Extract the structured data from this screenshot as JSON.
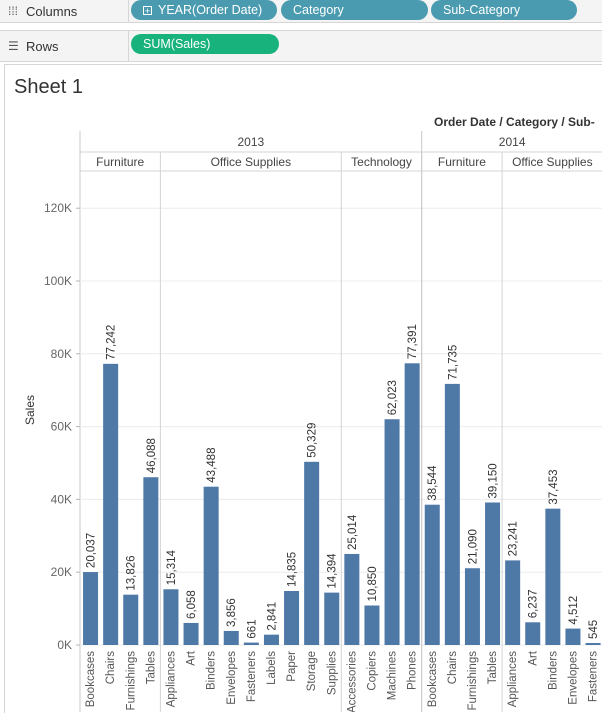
{
  "shelves": {
    "columns": {
      "label": "Columns",
      "pills": [
        "YEAR(Order Date)",
        "Category",
        "Sub-Category"
      ]
    },
    "rows": {
      "label": "Rows",
      "pills": [
        "SUM(Sales)"
      ]
    }
  },
  "sheet": {
    "title": "Sheet 1",
    "header_caption": "Order Date / Category / Sub-"
  },
  "colors": {
    "bar": "#4e79a7",
    "dimension_pill": "#4a9bb0",
    "measure_pill": "#18b27d"
  },
  "chart_data": {
    "type": "bar",
    "title": "Sheet 1",
    "ylabel": "Sales",
    "ylim": [
      0,
      125000
    ],
    "yticks": [
      "0K",
      "20K",
      "40K",
      "60K",
      "80K",
      "100K",
      "120K"
    ],
    "years": [
      {
        "year": "2013",
        "categories": [
          {
            "name": "Furniture",
            "items": [
              {
                "sub": "Bookcases",
                "value": 20037,
                "label": "20,037"
              },
              {
                "sub": "Chairs",
                "value": 77242,
                "label": "77,242"
              },
              {
                "sub": "Furnishings",
                "value": 13826,
                "label": "13,826"
              },
              {
                "sub": "Tables",
                "value": 46088,
                "label": "46,088"
              }
            ]
          },
          {
            "name": "Office Supplies",
            "items": [
              {
                "sub": "Appliances",
                "value": 15314,
                "label": "15,314"
              },
              {
                "sub": "Art",
                "value": 6058,
                "label": "6,058"
              },
              {
                "sub": "Binders",
                "value": 43488,
                "label": "43,488"
              },
              {
                "sub": "Envelopes",
                "value": 3856,
                "label": "3,856"
              },
              {
                "sub": "Fasteners",
                "value": 661,
                "label": "661"
              },
              {
                "sub": "Labels",
                "value": 2841,
                "label": "2,841"
              },
              {
                "sub": "Paper",
                "value": 14835,
                "label": "14,835"
              },
              {
                "sub": "Storage",
                "value": 50329,
                "label": "50,329"
              },
              {
                "sub": "Supplies",
                "value": 14394,
                "label": "14,394"
              }
            ]
          },
          {
            "name": "Technology",
            "items": [
              {
                "sub": "Accessories",
                "value": 25014,
                "label": "25,014"
              },
              {
                "sub": "Copiers",
                "value": 10850,
                "label": "10,850"
              },
              {
                "sub": "Machines",
                "value": 62023,
                "label": "62,023"
              },
              {
                "sub": "Phones",
                "value": 77391,
                "label": "77,391"
              }
            ]
          }
        ]
      },
      {
        "year": "2014",
        "categories": [
          {
            "name": "Furniture",
            "items": [
              {
                "sub": "Bookcases",
                "value": 38544,
                "label": "38,544"
              },
              {
                "sub": "Chairs",
                "value": 71735,
                "label": "71,735"
              },
              {
                "sub": "Furnishings",
                "value": 21090,
                "label": "21,090"
              },
              {
                "sub": "Tables",
                "value": 39150,
                "label": "39,150"
              }
            ]
          },
          {
            "name": "Office Supplies",
            "items": [
              {
                "sub": "Appliances",
                "value": 23241,
                "label": "23,241"
              },
              {
                "sub": "Art",
                "value": 6237,
                "label": "6,237"
              },
              {
                "sub": "Binders",
                "value": 37453,
                "label": "37,453"
              },
              {
                "sub": "Envelopes",
                "value": 4512,
                "label": "4,512"
              },
              {
                "sub": "Fasteners",
                "value": 545,
                "label": "545"
              }
            ]
          }
        ]
      }
    ]
  }
}
